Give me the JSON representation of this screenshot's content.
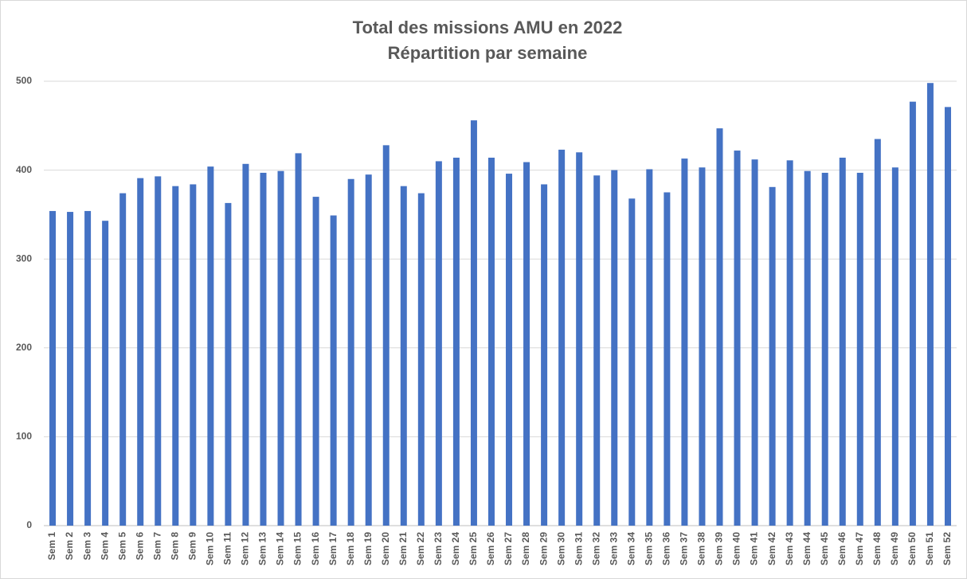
{
  "chart_data": {
    "type": "bar",
    "title": "Total des missions AMU en 2022",
    "subtitle": "Répartition par semaine",
    "categories": [
      "Sem 1",
      "Sem 2",
      "Sem 3",
      "Sem 4",
      "Sem 5",
      "Sem 6",
      "Sem 7",
      "Sem 8",
      "Sem 9",
      "Sem 10",
      "Sem 11",
      "Sem 12",
      "Sem 13",
      "Sem 14",
      "Sem 15",
      "Sem 16",
      "Sem 17",
      "Sem 18",
      "Sem 19",
      "Sem 20",
      "Sem 21",
      "Sem 22",
      "Sem 23",
      "Sem 24",
      "Sem 25",
      "Sem 26",
      "Sem 27",
      "Sem 28",
      "Sem 29",
      "Sem 30",
      "Sem 31",
      "Sem 32",
      "Sem 33",
      "Sem 34",
      "Sem 35",
      "Sem 36",
      "Sem 37",
      "Sem 38",
      "Sem 39",
      "Sem 40",
      "Sem 41",
      "Sem 42",
      "Sem 43",
      "Sem 44",
      "Sem 45",
      "Sem 46",
      "Sem 47",
      "Sem 48",
      "Sem 49",
      "Sem 50",
      "Sem 51",
      "Sem 52"
    ],
    "values": [
      354,
      353,
      354,
      343,
      374,
      391,
      393,
      382,
      384,
      404,
      363,
      407,
      397,
      399,
      419,
      370,
      349,
      390,
      395,
      428,
      382,
      374,
      410,
      414,
      456,
      414,
      396,
      409,
      384,
      423,
      420,
      394,
      400,
      368,
      401,
      375,
      413,
      403,
      447,
      422,
      412,
      381,
      411,
      399,
      397,
      414,
      397,
      435,
      403,
      477,
      498,
      471
    ],
    "color": "#4472c4",
    "ylim": [
      0,
      500
    ],
    "yticks": [
      0,
      100,
      200,
      300,
      400,
      500
    ],
    "grid": true
  }
}
